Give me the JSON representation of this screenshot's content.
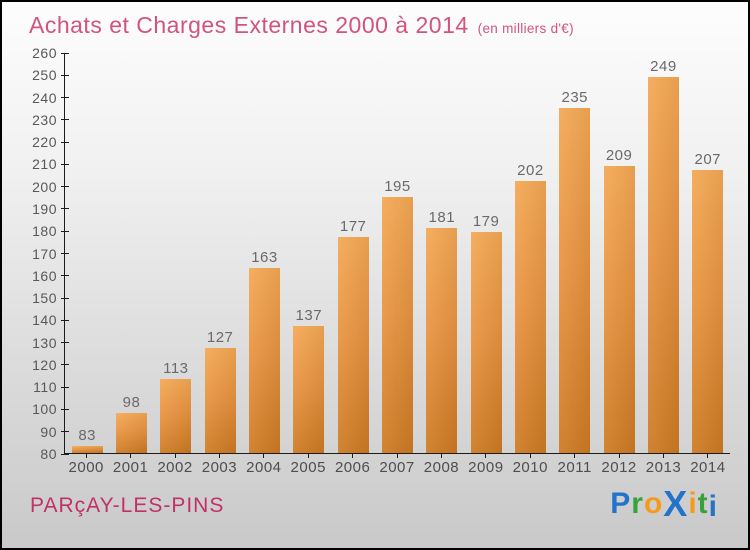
{
  "header": {
    "title": "Achats et Charges Externes 2000 à 2014",
    "subtitle": "(en milliers d'€)"
  },
  "chart_data": {
    "type": "bar",
    "title": "Achats et Charges Externes 2000 à 2014",
    "unit_note": "en milliers d'€",
    "categories": [
      "2000",
      "2001",
      "2002",
      "2003",
      "2004",
      "2005",
      "2006",
      "2007",
      "2008",
      "2009",
      "2010",
      "2011",
      "2012",
      "2013",
      "2014"
    ],
    "values": [
      83,
      98,
      113,
      127,
      163,
      137,
      177,
      195,
      181,
      179,
      202,
      235,
      209,
      249,
      207
    ],
    "xlabel": "",
    "ylabel": "",
    "ylim": [
      80,
      260
    ],
    "ytick_step": 10,
    "grid": false,
    "legend": "none",
    "bar_color_top": "#f4a854",
    "bar_color_bottom": "#cd7a22"
  },
  "footer": {
    "commune": "PARçAY-LES-PINS",
    "logo": {
      "brand": "Proxiti",
      "letters": [
        {
          "ch": "P",
          "color": "#2273c9"
        },
        {
          "ch": "r",
          "color": "#37a23c"
        },
        {
          "ch": "o",
          "color": "#f69a1d"
        },
        {
          "ch": "X",
          "color": "#2273c9"
        },
        {
          "ch": "i",
          "color": "#f69a1d"
        },
        {
          "ch": "t",
          "color": "#37a23c"
        },
        {
          "ch": "i",
          "color": "#2273c9"
        }
      ]
    }
  },
  "colors": {
    "title": "#d2537e",
    "commune": "#c23069",
    "axis": "#1c1c1c",
    "tick_label": "#585858",
    "value_label": "#6a6a6a",
    "year_label": "#4e4e4e",
    "background_top": "#fdfdfd",
    "background_bottom": "#c9c9c9"
  }
}
